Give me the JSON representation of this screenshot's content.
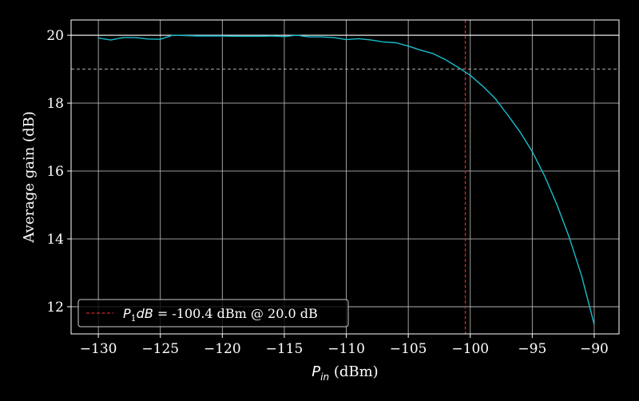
{
  "chart_data": {
    "type": "line",
    "xlabel": {
      "symbol": "P",
      "subscript": "in",
      "unit": " (dBm)"
    },
    "ylabel": "Average gain (dB)",
    "xlim": [
      -132.2,
      -88.0
    ],
    "ylim": [
      11.2,
      20.45
    ],
    "x_ticks": [
      -130,
      -125,
      -120,
      -115,
      -110,
      -105,
      -100,
      -95,
      -90
    ],
    "x_tick_labels": [
      "−130",
      "−125",
      "−120",
      "−115",
      "−110",
      "−105",
      "−100",
      "−95",
      "−90"
    ],
    "y_ticks": [
      12,
      14,
      16,
      18,
      20
    ],
    "y_tick_labels": [
      "12",
      "14",
      "16",
      "18",
      "20"
    ],
    "grid": true,
    "legend_placement": "lower-left",
    "colors": {
      "background": "#000000",
      "axes": "#ffffff",
      "grid": "#b0b0b0",
      "series": "#17becf",
      "p1db_marker": "#d62728",
      "reference": "#bfbfbf"
    },
    "series": [
      {
        "x": [
          -130,
          -129,
          -128,
          -127,
          -126,
          -125,
          -124,
          -123,
          -122,
          -121,
          -120,
          -119,
          -118,
          -117,
          -116,
          -115,
          -114,
          -113,
          -112,
          -111,
          -110,
          -109,
          -108,
          -107,
          -106,
          -105,
          -104,
          -103,
          -102,
          -101,
          -100,
          -99,
          -98,
          -97,
          -96,
          -95,
          -94,
          -93,
          -92,
          -91,
          -90
        ],
        "values": [
          19.92,
          19.86,
          19.93,
          19.93,
          19.89,
          19.88,
          20.0,
          19.99,
          19.98,
          19.98,
          19.98,
          19.97,
          19.97,
          19.97,
          19.98,
          19.96,
          20.0,
          19.95,
          19.95,
          19.93,
          19.87,
          19.9,
          19.86,
          19.8,
          19.78,
          19.68,
          19.56,
          19.46,
          19.28,
          19.06,
          18.82,
          18.5,
          18.14,
          17.66,
          17.16,
          16.57,
          15.85,
          15.0,
          14.03,
          12.89,
          11.47
        ]
      }
    ],
    "reference_lines": [
      {
        "orientation": "horizontal",
        "value": 20.0,
        "style": "solid"
      },
      {
        "orientation": "horizontal",
        "value": 19.0,
        "style": "dashed"
      },
      {
        "orientation": "vertical",
        "value": -100.4,
        "style": "dashed"
      }
    ],
    "legend": {
      "symbol": "P",
      "subscript": "1",
      "symbol_tail": "dB",
      "text": " = -100.4 dBm @ 20.0 dB"
    }
  }
}
